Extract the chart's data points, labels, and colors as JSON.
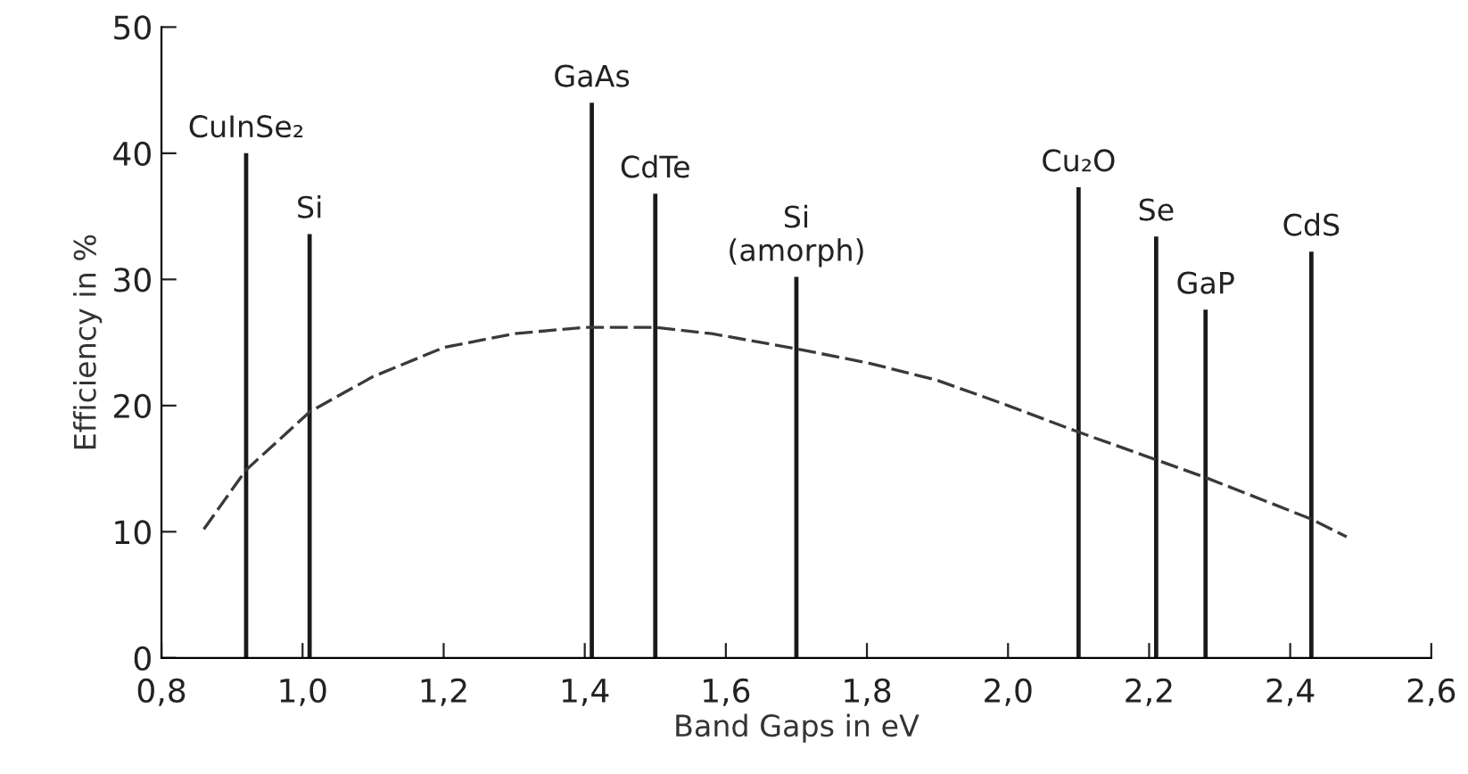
{
  "chart_data": {
    "type": "bar",
    "xlabel": "Band Gaps in eV",
    "ylabel": "Efficiency in %",
    "series": [
      {
        "color": "#1a1a1a",
        "x": [
          0.92,
          1.01,
          1.41,
          1.5,
          1.7,
          2.1,
          2.21,
          2.28,
          2.43
        ],
        "values": [
          40,
          33.6,
          44,
          36.8,
          30.2,
          37.3,
          33.4,
          27.6,
          32.2
        ]
      },
      {
        "type": "line",
        "color": "#3a3a3a",
        "line_style": "dashed",
        "x": [
          0.86,
          0.92,
          1.01,
          1.1,
          1.2,
          1.3,
          1.4,
          1.5,
          1.58,
          1.7,
          1.8,
          1.9,
          2.0,
          2.1,
          2.21,
          2.28,
          2.43,
          2.48
        ],
        "values": [
          10.2,
          14.9,
          19.5,
          22.3,
          24.6,
          25.7,
          26.2,
          26.2,
          25.7,
          24.5,
          23.4,
          22.0,
          20.0,
          17.9,
          15.7,
          14.3,
          11.0,
          9.6
        ]
      }
    ],
    "annotations": [
      {
        "text": "CuInSe₂",
        "x": 0.92,
        "y": 40
      },
      {
        "text": "Si",
        "x": 1.01,
        "y": 33.6
      },
      {
        "text": "GaAs",
        "x": 1.41,
        "y": 44
      },
      {
        "text": "CdTe",
        "x": 1.5,
        "y": 36.8
      },
      {
        "text": "Si\n(amorph)",
        "x": 1.7,
        "y": 30.2
      },
      {
        "text": "Cu₂O",
        "x": 2.1,
        "y": 37.3
      },
      {
        "text": "Se",
        "x": 2.21,
        "y": 33.4
      },
      {
        "text": "GaP",
        "x": 2.28,
        "y": 27.6
      },
      {
        "text": "CdS",
        "x": 2.43,
        "y": 32.2
      }
    ],
    "xlim": [
      0.8,
      2.6
    ],
    "ylim": [
      0,
      50
    ],
    "xticks": [
      {
        "value": 0.8,
        "label": "0,8"
      },
      {
        "value": 1.0,
        "label": "1,0"
      },
      {
        "value": 1.2,
        "label": "1,2"
      },
      {
        "value": 1.4,
        "label": "1,4"
      },
      {
        "value": 1.6,
        "label": "1,6"
      },
      {
        "value": 1.8,
        "label": "1,8"
      },
      {
        "value": 2.0,
        "label": "2,0"
      },
      {
        "value": 2.2,
        "label": "2,2"
      },
      {
        "value": 2.4,
        "label": "2,4"
      },
      {
        "value": 2.6,
        "label": "2,6"
      }
    ],
    "yticks": [
      0,
      10,
      20,
      30,
      40,
      50
    ],
    "grid": false,
    "legend": false
  }
}
